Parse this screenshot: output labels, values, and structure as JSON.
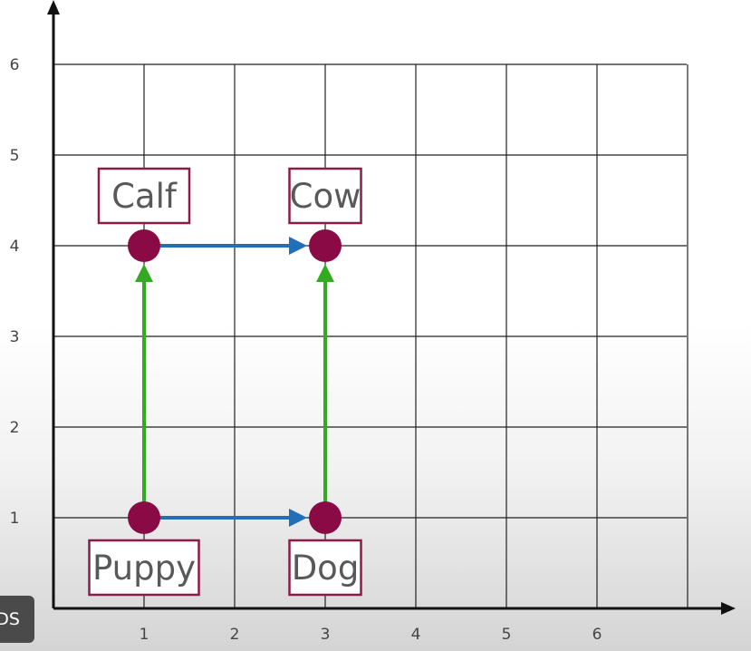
{
  "chart_data": {
    "type": "scatter",
    "xlim": [
      0,
      7
    ],
    "ylim": [
      0,
      6
    ],
    "x_ticks": [
      "1",
      "2",
      "3",
      "4",
      "5",
      "6"
    ],
    "y_ticks": [
      "1",
      "2",
      "3",
      "4",
      "5",
      "6"
    ],
    "grid": true,
    "points": [
      {
        "label": "Puppy",
        "x": 1,
        "y": 1
      },
      {
        "label": "Dog",
        "x": 3,
        "y": 1
      },
      {
        "label": "Calf",
        "x": 1,
        "y": 4
      },
      {
        "label": "Cow",
        "x": 3,
        "y": 4
      }
    ],
    "arrows": [
      {
        "from": "Puppy",
        "to": "Dog",
        "color": "#1f6fba"
      },
      {
        "from": "Calf",
        "to": "Cow",
        "color": "#1f6fba"
      },
      {
        "from": "Puppy",
        "to": "Calf",
        "color": "#33aa22"
      },
      {
        "from": "Dog",
        "to": "Cow",
        "color": "#33aa22"
      }
    ],
    "point_color": "#8a0a45",
    "label_border_color": "#8a1c4a"
  },
  "overlay": {
    "text": "DS"
  }
}
